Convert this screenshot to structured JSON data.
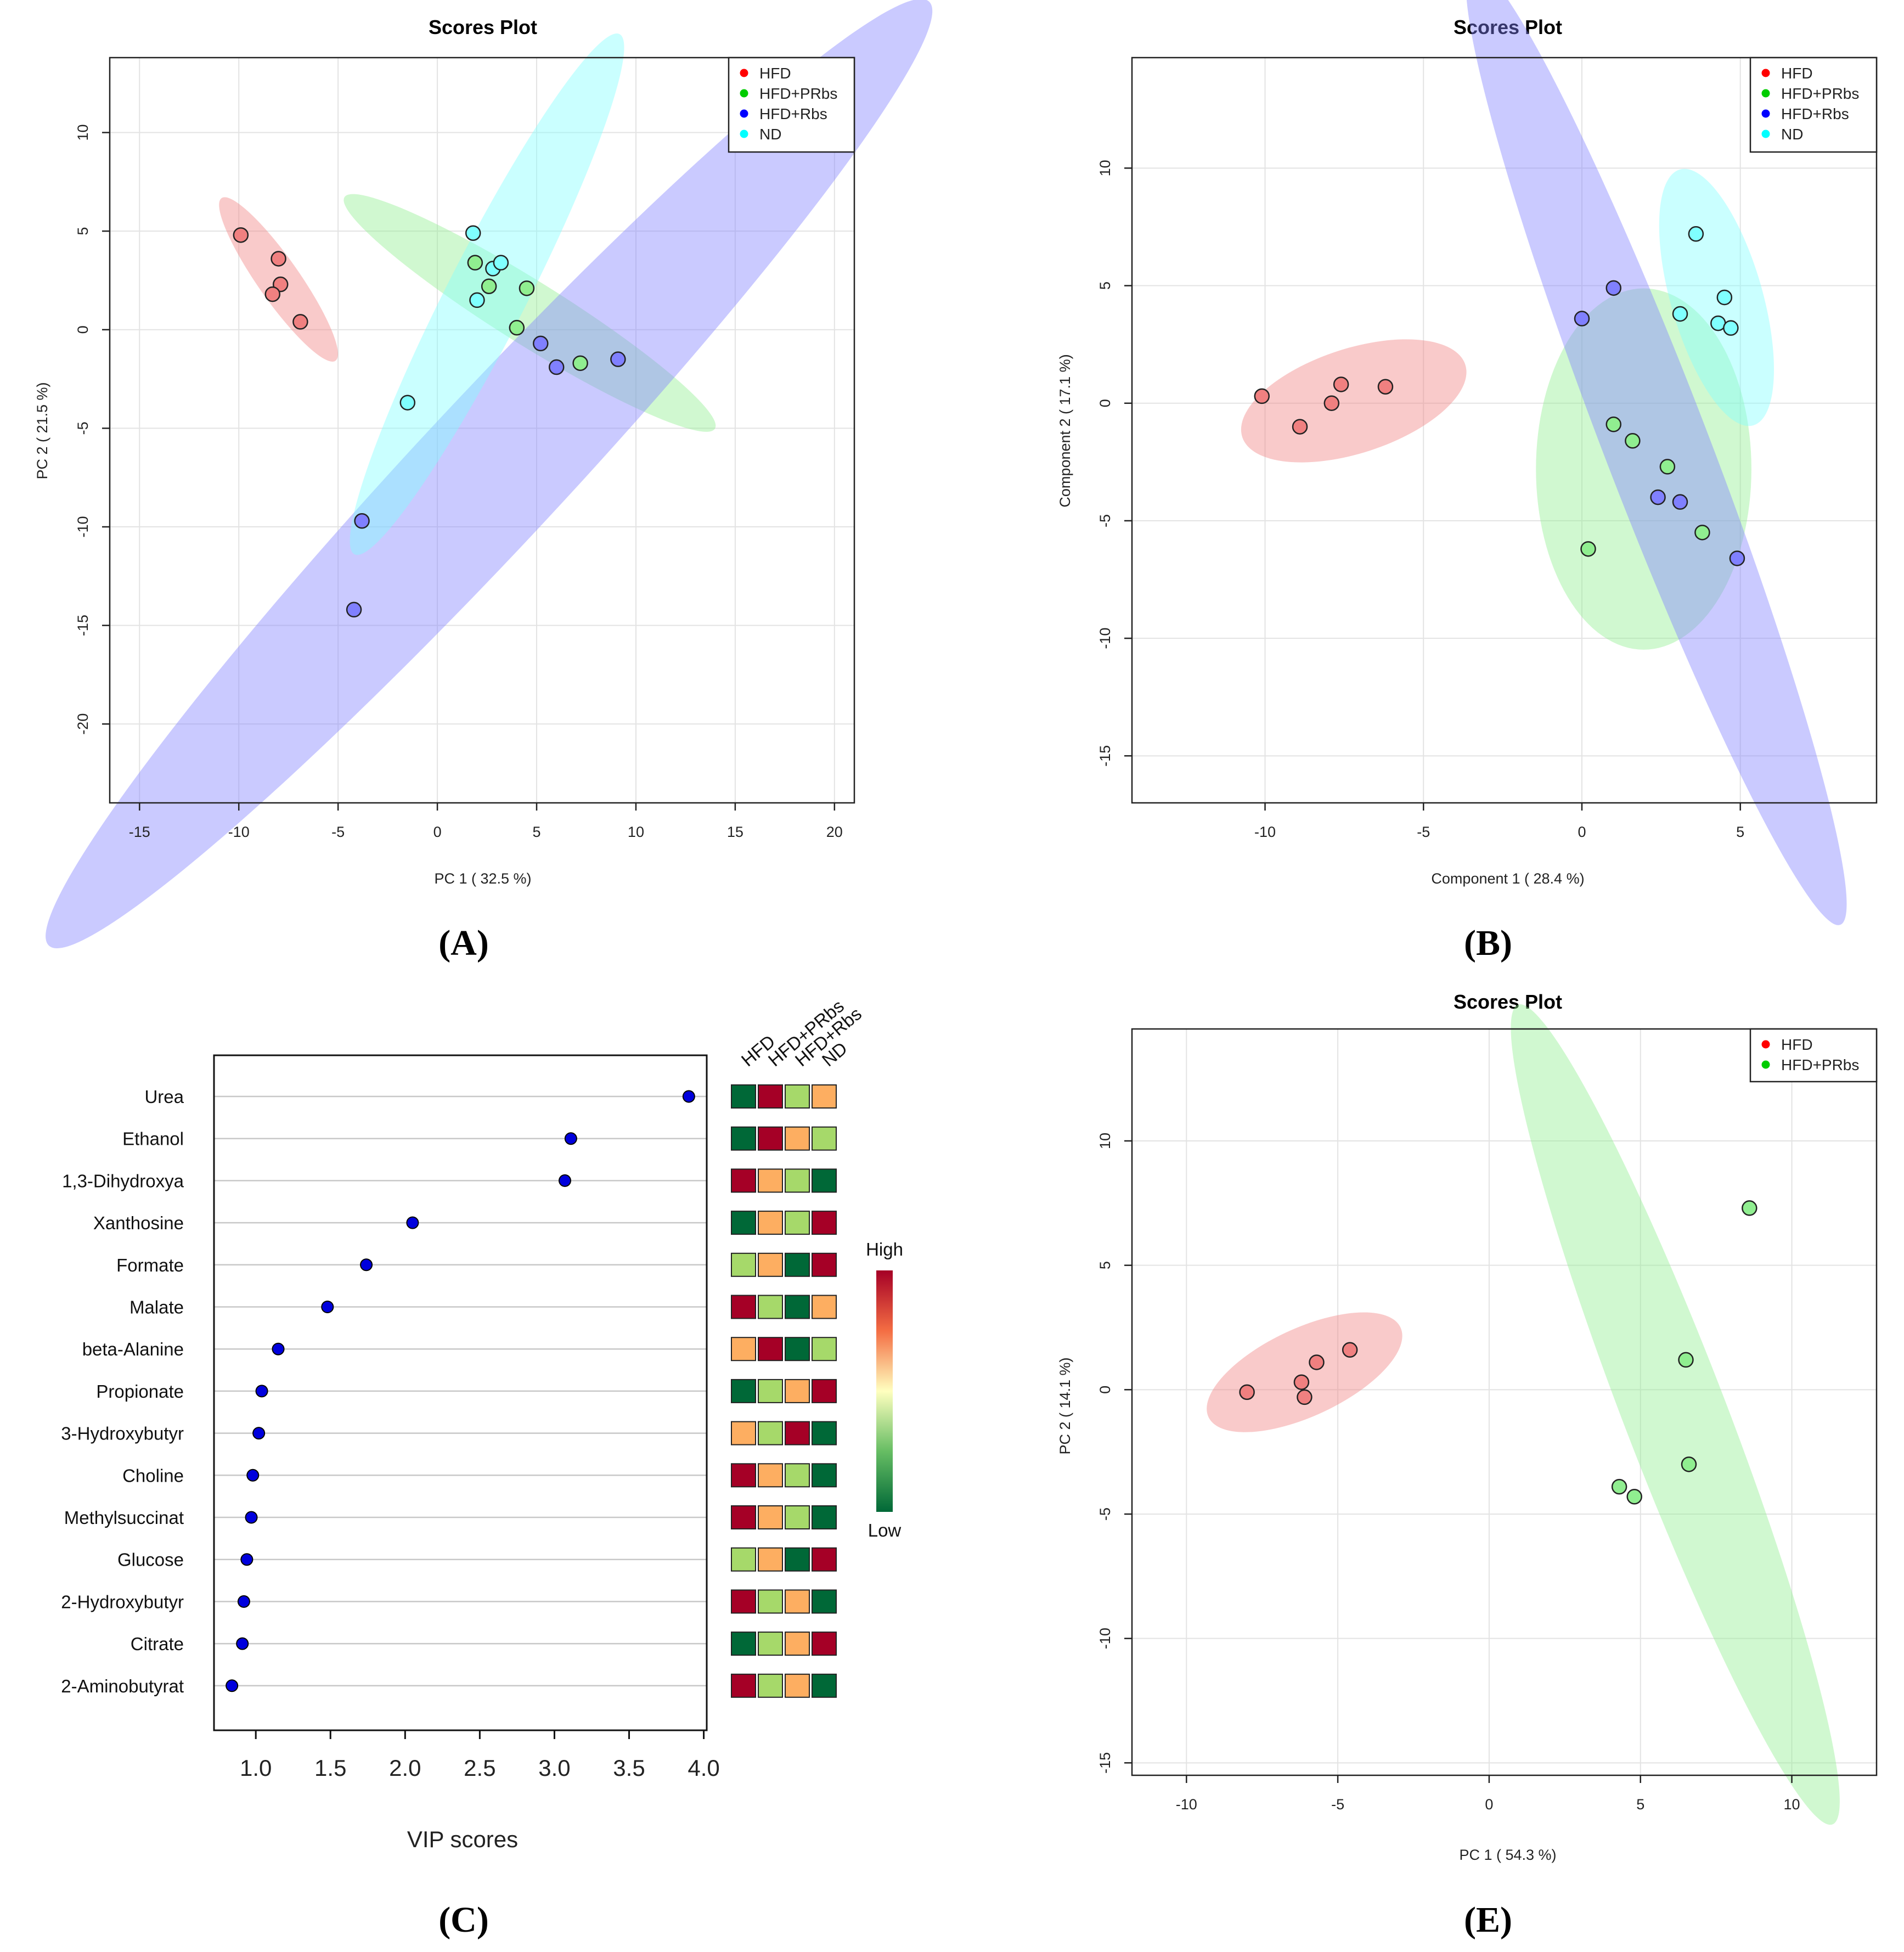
{
  "panels": {
    "A": {
      "caption": "(A)",
      "chart_data": {
        "type": "scatter",
        "title": "Scores Plot",
        "xlabel": "PC 1 ( 32.5 %)",
        "ylabel": "PC 2 ( 21.5 %)",
        "xlim": [
          -16.5,
          21
        ],
        "ylim": [
          -24,
          13.8
        ],
        "xticks": [
          -15,
          -10,
          -5,
          0,
          5,
          10,
          15,
          20
        ],
        "yticks": [
          -20,
          -15,
          -10,
          -5,
          0,
          5,
          10
        ],
        "legend": [
          "HFD",
          "HFD+PRbs",
          "HFD+Rbs",
          "ND"
        ],
        "series": [
          {
            "name": "HFD",
            "color": "#ff0000",
            "fill": "#f08080",
            "x": [
              -9.9,
              -8.0,
              -7.9,
              -8.3,
              -6.9
            ],
            "y": [
              4.8,
              3.6,
              2.3,
              1.8,
              0.4
            ],
            "ellipse": {
              "cx": -8.0,
              "cy": 2.55,
              "rx": 5.0,
              "ry": 1.05,
              "angle": -55
            }
          },
          {
            "name": "HFD+PRbs",
            "color": "#00cc00",
            "fill": "#90ee90",
            "x": [
              1.9,
              2.6,
              4.5,
              4.0,
              7.2
            ],
            "y": [
              3.4,
              2.2,
              2.1,
              0.1,
              -1.7
            ],
            "ellipse": {
              "cx": 4.65,
              "cy": 0.85,
              "rx": 11.0,
              "ry": 1.6,
              "angle": -32
            }
          },
          {
            "name": "HFD+Rbs",
            "color": "#0000ff",
            "fill": "#8080ff",
            "x": [
              5.2,
              6.0,
              9.1,
              -3.8,
              -4.2
            ],
            "y": [
              -0.7,
              -1.9,
              -1.5,
              -9.7,
              -14.2
            ],
            "ellipse": {
              "cx": 2.6,
              "cy": -7.3,
              "rx": 32.5,
              "ry": 3.7,
              "angle": 47
            }
          },
          {
            "name": "ND",
            "color": "#00ffff",
            "fill": "#80ffff",
            "x": [
              1.8,
              2.8,
              3.2,
              2.0,
              -1.5
            ],
            "y": [
              4.9,
              3.1,
              3.4,
              1.5,
              -3.7
            ],
            "ellipse": {
              "cx": 2.5,
              "cy": 1.8,
              "rx": 14.7,
              "ry": 2.0,
              "angle": 63
            }
          }
        ]
      }
    },
    "B": {
      "caption": "(B)",
      "chart_data": {
        "type": "scatter",
        "title": "Scores Plot",
        "xlabel": "Component 1 ( 28.4 %)",
        "ylabel": "Component 2 ( 17.1 %)",
        "xlim": [
          -14.2,
          9.3
        ],
        "ylim": [
          -17,
          14.7
        ],
        "xticks": [
          -10,
          -5,
          0,
          5
        ],
        "yticks": [
          -15,
          -10,
          -5,
          0,
          5,
          10
        ],
        "legend": [
          "HFD",
          "HFD+PRbs",
          "HFD+Rbs",
          "ND"
        ],
        "series": [
          {
            "name": "HFD",
            "color": "#ff0000",
            "fill": "#f08080",
            "x": [
              -10.1,
              -8.9,
              -7.9,
              -7.6,
              -6.2
            ],
            "y": [
              0.3,
              -1.0,
              0.0,
              0.8,
              0.7
            ],
            "ellipse": {
              "cx": -7.2,
              "cy": 0.1,
              "rx": 3.7,
              "ry": 1.65,
              "angle": 18
            }
          },
          {
            "name": "HFD+PRbs",
            "color": "#00cc00",
            "fill": "#90ee90",
            "x": [
              1.0,
              1.6,
              2.7,
              3.8,
              0.2
            ],
            "y": [
              -0.9,
              -1.6,
              -2.7,
              -5.5,
              -6.2
            ],
            "ellipse": {
              "cx": 1.95,
              "cy": -2.8,
              "rx": 3.4,
              "ry": 5.7,
              "angle": 0
            }
          },
          {
            "name": "HFD+Rbs",
            "color": "#0000ff",
            "fill": "#8080ff",
            "x": [
              0.0,
              1.0,
              2.4,
              3.1,
              4.9
            ],
            "y": [
              3.6,
              4.9,
              -4.0,
              -4.2,
              -6.6
            ],
            "ellipse": {
              "cx": 2.35,
              "cy": -1.8,
              "rx": 16.2,
              "ry": 1.65,
              "angle": -69
            }
          },
          {
            "name": "ND",
            "color": "#00ffff",
            "fill": "#80ffff",
            "x": [
              3.6,
              4.5,
              3.1,
              4.3,
              4.7
            ],
            "y": [
              7.2,
              4.5,
              3.8,
              3.4,
              3.2
            ],
            "ellipse": {
              "cx": 4.25,
              "cy": 4.5,
              "rx": 4.2,
              "ry": 1.45,
              "angle": -74
            }
          }
        ]
      }
    },
    "C": {
      "caption": "(C)",
      "chart_data": {
        "type": "scatter",
        "title": "",
        "xlabel": "VIP scores",
        "ylabel": "",
        "xlim": [
          0.72,
          4.02
        ],
        "xticks": [
          1.0,
          1.5,
          2.0,
          2.5,
          3.0,
          3.5,
          4.0
        ],
        "xtick_labels": [
          "1.0",
          "1.5",
          "2.0",
          "2.5",
          "3.0",
          "3.5",
          "4.0"
        ],
        "metabolites": [
          "Urea",
          "Ethanol",
          "1,3-Dihydroxya",
          "Xanthosine",
          "Formate",
          "Malate",
          "beta-Alanine",
          "Propionate",
          "3-Hydroxybutyr",
          "Choline",
          "Methylsuccinat",
          "Glucose",
          "2-Hydroxybutyr",
          "Citrate",
          "2-Aminobutyrat"
        ],
        "values": [
          3.9,
          3.11,
          3.07,
          2.05,
          1.74,
          1.48,
          1.15,
          1.04,
          1.02,
          0.98,
          0.97,
          0.94,
          0.92,
          0.91,
          0.84
        ],
        "heatmap_columns": [
          "HFD",
          "HFD+PRbs",
          "HFD+Rbs",
          "ND"
        ],
        "heatmap_levels": [
          [
            1,
            4,
            2,
            3
          ],
          [
            1,
            4,
            3,
            2
          ],
          [
            4,
            3,
            2,
            1
          ],
          [
            1,
            3,
            2,
            4
          ],
          [
            2,
            3,
            1,
            4
          ],
          [
            4,
            2,
            1,
            3
          ],
          [
            3,
            4,
            1,
            2
          ],
          [
            1,
            2,
            3,
            4
          ],
          [
            3,
            2,
            4,
            1
          ],
          [
            4,
            3,
            2,
            1
          ],
          [
            4,
            3,
            2,
            1
          ],
          [
            2,
            3,
            1,
            4
          ],
          [
            4,
            2,
            3,
            1
          ],
          [
            1,
            2,
            3,
            4
          ],
          [
            4,
            2,
            3,
            1
          ]
        ],
        "level_colors": {
          "1": "#006837",
          "2": "#a6d96a",
          "3": "#fdae61",
          "4": "#a50026"
        },
        "colorbar_high": "High",
        "colorbar_low": "Low"
      }
    },
    "E": {
      "caption": "(E)",
      "chart_data": {
        "type": "scatter",
        "title": "Scores Plot",
        "xlabel": "PC 1 ( 54.3 %)",
        "ylabel": "PC 2 ( 14.1 %)",
        "xlim": [
          -11.8,
          12.8
        ],
        "ylim": [
          -15.5,
          14.5
        ],
        "xticks": [
          -10,
          -5,
          0,
          5,
          10
        ],
        "yticks": [
          -15,
          -10,
          -5,
          0,
          5,
          10
        ],
        "legend": [
          "HFD",
          "HFD+PRbs"
        ],
        "series": [
          {
            "name": "HFD",
            "color": "#ff0000",
            "fill": "#f08080",
            "x": [
              -8.0,
              -6.2,
              -6.1,
              -5.7,
              -4.6
            ],
            "y": [
              -0.1,
              0.3,
              -0.3,
              1.1,
              1.6
            ],
            "ellipse": {
              "cx": -6.1,
              "cy": 0.7,
              "rx": 3.5,
              "ry": 1.45,
              "angle": 25
            }
          },
          {
            "name": "HFD+PRbs",
            "color": "#00cc00",
            "fill": "#90ee90",
            "x": [
              8.6,
              6.5,
              6.6,
              4.3,
              4.8
            ],
            "y": [
              7.3,
              1.2,
              -3.0,
              -3.9,
              -4.3
            ],
            "ellipse": {
              "cx": 6.15,
              "cy": -1.0,
              "rx": 14.5,
              "ry": 1.7,
              "angle": -69
            }
          }
        ]
      }
    }
  }
}
